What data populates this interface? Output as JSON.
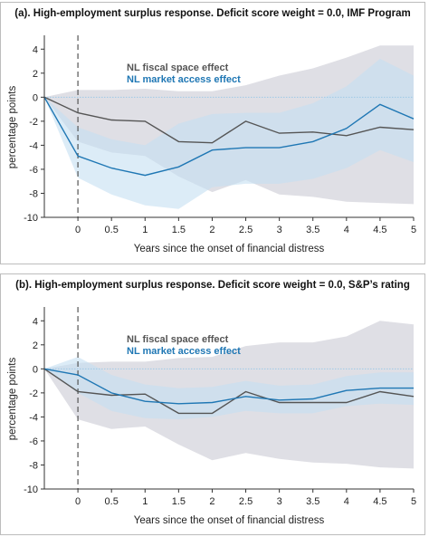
{
  "figure": {
    "panels": [
      {
        "title": "(a). High-employment surplus response. Deficit score weight = 0.0, IMF Program"
      },
      {
        "title": "(b). High-employment surplus response. Deficit score weight = 0.0, S&P’s rating"
      }
    ]
  },
  "colors": {
    "fiscal_line": "#555555",
    "market_line": "#1f77b4",
    "fiscal_band": "#d4d4dc",
    "market_band": "#c5e0f2",
    "zero_line": "#9ec9e6",
    "vline": "#555555"
  },
  "chart_data": [
    {
      "type": "line",
      "title": "(a). High-employment surplus response. Deficit score weight = 0.0, IMF Program",
      "xlabel": "Years since the onset of financial distress",
      "ylabel": "percentage points",
      "x": [
        -0.5,
        0,
        0.5,
        1,
        1.5,
        2,
        2.5,
        3,
        3.5,
        4,
        4.5,
        5
      ],
      "x_ticks": [
        "0",
        "0.5",
        "1",
        "1.5",
        "2",
        "2.5",
        "3",
        "3.5",
        "4",
        "4.5",
        "5"
      ],
      "y_ticks": [
        "4",
        "2",
        "0",
        "-2",
        "-4",
        "-6",
        "-8",
        "-10"
      ],
      "xlim": [
        -0.5,
        5
      ],
      "ylim": [
        -10,
        5
      ],
      "vline_x": 0,
      "legend_position": "upper-left-center",
      "series": [
        {
          "name": "NL fiscal space effect",
          "values": [
            0,
            -1.3,
            -1.9,
            -2.0,
            -3.7,
            -3.8,
            -2.0,
            -3.0,
            -2.9,
            -3.2,
            -2.5,
            -2.7
          ],
          "band_lower": [
            0,
            -3.7,
            -4.6,
            -4.9,
            -6.6,
            -7.9,
            -6.9,
            -8.1,
            -8.3,
            -8.7,
            -8.8,
            -8.9
          ],
          "band_upper": [
            0,
            0.6,
            0.6,
            0.7,
            0.5,
            0.5,
            1.0,
            1.8,
            2.4,
            3.3,
            4.3,
            4.3
          ]
        },
        {
          "name": "NL market access effect",
          "values": [
            0,
            -4.9,
            -5.9,
            -6.5,
            -5.8,
            -4.4,
            -4.2,
            -4.2,
            -3.7,
            -2.6,
            -0.6,
            -1.8
          ],
          "band_lower": [
            0,
            -6.7,
            -8.1,
            -9.0,
            -9.3,
            -7.5,
            -7.2,
            -7.2,
            -6.8,
            -5.9,
            -4.4,
            -5.4
          ],
          "band_upper": [
            0,
            -2.5,
            -3.5,
            -4.0,
            -2.2,
            -1.4,
            -1.3,
            -1.3,
            -0.5,
            0.9,
            3.2,
            1.8
          ]
        }
      ]
    },
    {
      "type": "line",
      "title": "(b). High-employment surplus response. Deficit score weight = 0.0, S&P’s rating",
      "xlabel": "Years since the onset of financial distress",
      "ylabel": "percentage points",
      "x": [
        -0.5,
        0,
        0.5,
        1,
        1.5,
        2,
        2.5,
        3,
        3.5,
        4,
        4.5,
        5
      ],
      "x_ticks": [
        "0",
        "0.5",
        "1",
        "1.5",
        "2",
        "2.5",
        "3",
        "3.5",
        "4",
        "4.5",
        "5"
      ],
      "y_ticks": [
        "4",
        "2",
        "0",
        "-2",
        "-4",
        "-6",
        "-8",
        "-10"
      ],
      "xlim": [
        -0.5,
        5
      ],
      "ylim": [
        -10,
        5
      ],
      "vline_x": 0,
      "legend_position": "upper-left-center",
      "series": [
        {
          "name": "NL fiscal space effect",
          "values": [
            0,
            -1.9,
            -2.2,
            -2.1,
            -3.7,
            -3.7,
            -1.9,
            -2.8,
            -2.8,
            -2.8,
            -1.9,
            -2.3
          ],
          "band_lower": [
            0,
            -4.2,
            -5.0,
            -4.8,
            -6.3,
            -7.6,
            -7.0,
            -7.5,
            -7.8,
            -7.9,
            -8.2,
            -8.3
          ],
          "band_upper": [
            0,
            0.5,
            0.6,
            0.6,
            0.9,
            1.0,
            1.9,
            2.2,
            2.2,
            2.7,
            4.0,
            3.7
          ]
        },
        {
          "name": "NL market access effect",
          "values": [
            0,
            -0.5,
            -2.0,
            -2.7,
            -2.9,
            -2.8,
            -2.3,
            -2.6,
            -2.5,
            -1.8,
            -1.6,
            -1.6
          ],
          "band_lower": [
            0,
            -2.0,
            -3.5,
            -4.1,
            -4.2,
            -4.0,
            -3.5,
            -3.7,
            -3.7,
            -3.1,
            -2.9,
            -3.0
          ],
          "band_upper": [
            0,
            1.0,
            -0.5,
            -1.3,
            -1.6,
            -1.5,
            -1.0,
            -1.4,
            -1.3,
            -0.6,
            -0.3,
            -0.3
          ]
        }
      ]
    }
  ]
}
